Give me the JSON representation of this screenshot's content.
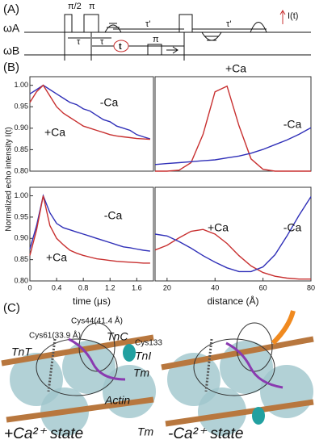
{
  "panel_a": {
    "label": "(A)",
    "channels": [
      "ωA",
      "ωB"
    ],
    "pulses": [
      "π/2",
      "π",
      "π"
    ],
    "delays": [
      "τ",
      "τ",
      "τ'",
      "τ'"
    ],
    "t": "t",
    "signal": "I(t)"
  },
  "panel_b": {
    "label": "(B)",
    "ylabel": "Normalized echo intensity  I(t)"
  },
  "panel_c": {
    "label": "(C)",
    "texts": [
      "Cys44(41.4 Å)",
      "Cys61(33.9 Å)",
      "TnC",
      "Cys133",
      "TnT",
      "TnI",
      "Tm",
      "Actin",
      "Tm"
    ],
    "states": [
      "+Ca²⁺ state",
      "-Ca²⁺ state"
    ]
  },
  "chart_data": [
    {
      "type": "line",
      "x": [
        0,
        0.1,
        0.2,
        0.3,
        0.4,
        0.5,
        0.6,
        0.7,
        0.8,
        0.9,
        1.0,
        1.1,
        1.2,
        1.3,
        1.4,
        1.5,
        1.6,
        1.7,
        1.8
      ],
      "xlim": [
        0,
        1.85
      ],
      "ylim": [
        0.8,
        1.02
      ],
      "yticks": [
        {
          "value": 0.8,
          "label": "0.80"
        },
        {
          "value": 0.85,
          "label": "0.85"
        },
        {
          "value": 0.9,
          "label": "0.90"
        },
        {
          "value": 0.95,
          "label": "0.95"
        },
        {
          "value": 1.0,
          "label": "1.00"
        }
      ],
      "series": [
        {
          "name": "-Ca",
          "color": "#3030b8",
          "values": [
            0.98,
            0.99,
            1.0,
            0.99,
            0.98,
            0.97,
            0.96,
            0.955,
            0.945,
            0.94,
            0.93,
            0.92,
            0.915,
            0.905,
            0.9,
            0.895,
            0.885,
            0.88,
            0.875
          ]
        },
        {
          "name": "+Ca",
          "color": "#c83030",
          "values": [
            0.96,
            0.985,
            1.0,
            0.975,
            0.95,
            0.935,
            0.925,
            0.915,
            0.905,
            0.9,
            0.895,
            0.89,
            0.885,
            0.882,
            0.88,
            0.878,
            0.876,
            0.875,
            0.874
          ]
        }
      ]
    },
    {
      "type": "line",
      "x": [
        15,
        20,
        25,
        30,
        35,
        40,
        45,
        50,
        55,
        60,
        65,
        70,
        75,
        80
      ],
      "xlim": [
        15,
        80
      ],
      "ylim": [
        0,
        1
      ],
      "series": [
        {
          "name": "+Ca",
          "color": "#c83030",
          "values": [
            0.0,
            0.0,
            0.01,
            0.09,
            0.39,
            0.84,
            0.9,
            0.48,
            0.13,
            0.02,
            0.0,
            0.0,
            0.0,
            0.0
          ]
        },
        {
          "name": "-Ca",
          "color": "#3030b8",
          "values": [
            0.07,
            0.08,
            0.09,
            0.1,
            0.11,
            0.12,
            0.14,
            0.16,
            0.19,
            0.23,
            0.28,
            0.33,
            0.39,
            0.46
          ]
        }
      ]
    },
    {
      "type": "line",
      "x": [
        0,
        0.1,
        0.2,
        0.3,
        0.4,
        0.5,
        0.6,
        0.7,
        0.8,
        0.9,
        1.0,
        1.1,
        1.2,
        1.3,
        1.4,
        1.5,
        1.6,
        1.7,
        1.8
      ],
      "xlim": [
        0,
        1.85
      ],
      "ylim": [
        0.8,
        1.02
      ],
      "xlabel": "time (μs)",
      "xticks": [
        0,
        0.4,
        0.8,
        1.2,
        1.6
      ],
      "yticks": [
        {
          "value": 0.8,
          "label": "0.80"
        },
        {
          "value": 0.85,
          "label": "0.85"
        },
        {
          "value": 0.9,
          "label": "0.90"
        },
        {
          "value": 0.95,
          "label": "0.95"
        },
        {
          "value": 1.0,
          "label": "1.00"
        }
      ],
      "series": [
        {
          "name": "-Ca",
          "color": "#3030b8",
          "values": [
            0.875,
            0.93,
            1.0,
            0.96,
            0.935,
            0.925,
            0.92,
            0.915,
            0.91,
            0.905,
            0.9,
            0.895,
            0.89,
            0.885,
            0.88,
            0.878,
            0.875,
            0.872,
            0.87
          ]
        },
        {
          "name": "+Ca",
          "color": "#c83030",
          "values": [
            0.86,
            0.92,
            1.0,
            0.93,
            0.9,
            0.885,
            0.872,
            0.865,
            0.86,
            0.856,
            0.852,
            0.85,
            0.848,
            0.846,
            0.845,
            0.844,
            0.843,
            0.842,
            0.842
          ]
        }
      ]
    },
    {
      "type": "line",
      "x": [
        15,
        20,
        25,
        30,
        35,
        40,
        45,
        50,
        55,
        60,
        65,
        70,
        75,
        80
      ],
      "xlim": [
        15,
        80
      ],
      "ylim": [
        0,
        1
      ],
      "xlabel": "distance (Å)",
      "xticks": [
        20,
        40,
        60,
        80
      ],
      "series": [
        {
          "name": "+Ca",
          "color": "#c83030",
          "values": [
            0.33,
            0.38,
            0.46,
            0.53,
            0.55,
            0.5,
            0.4,
            0.27,
            0.16,
            0.09,
            0.05,
            0.03,
            0.02,
            0.02
          ]
        },
        {
          "name": "-Ca",
          "color": "#3030b8",
          "values": [
            0.5,
            0.48,
            0.42,
            0.35,
            0.27,
            0.2,
            0.14,
            0.1,
            0.1,
            0.15,
            0.28,
            0.48,
            0.7,
            0.9
          ]
        }
      ]
    }
  ]
}
